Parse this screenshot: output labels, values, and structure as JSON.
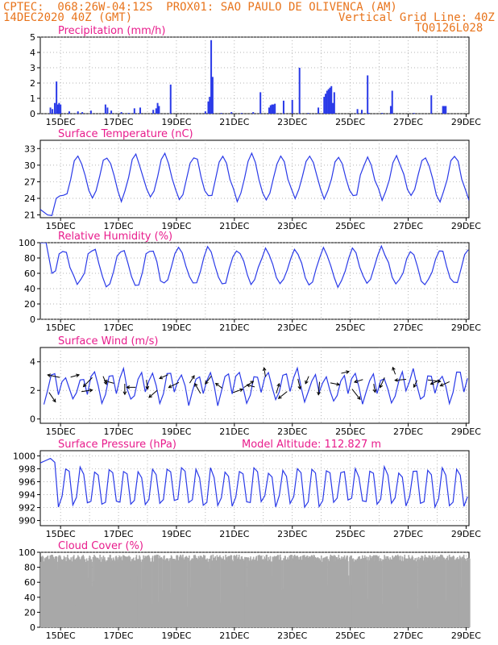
{
  "header": {
    "line1_left": "CPTEC:  068:26W-04:12S  PROX01: SAO PAULO DE OLIVENCA (AM)",
    "line2_left": "14DEC2020 40Z (GMT)",
    "line2_right": "Vertical Grid Line: 40Z",
    "line3_right": "TQ0126L028"
  },
  "colors": {
    "header": "#e8741c",
    "panel_title": "#e81c8c",
    "series": "#2a3ae8",
    "cloud": "#a8a8a8",
    "arrow": "#000000",
    "grid": "#9a9a9a"
  },
  "x_ticks": [
    "15DEC",
    "17DEC",
    "19DEC",
    "21DEC",
    "23DEC",
    "25DEC",
    "27DEC",
    "29DEC"
  ],
  "chart_data": [
    {
      "type": "bar",
      "title": "Precipitation (mm/h)",
      "ylim": [
        0,
        5
      ],
      "yticks": [
        "0",
        "1",
        "2",
        "3",
        "4",
        "5"
      ],
      "x_range_days": [
        14.3,
        29.1
      ],
      "bars": [
        [
          14.65,
          0.4
        ],
        [
          14.72,
          0.3
        ],
        [
          14.8,
          0.7
        ],
        [
          14.86,
          2.1
        ],
        [
          14.9,
          0.6
        ],
        [
          14.95,
          0.7
        ],
        [
          15.0,
          0.6
        ],
        [
          15.3,
          0.15
        ],
        [
          15.6,
          0.15
        ],
        [
          15.75,
          0.1
        ],
        [
          16.05,
          0.2
        ],
        [
          16.55,
          0.6
        ],
        [
          16.62,
          0.4
        ],
        [
          16.75,
          0.2
        ],
        [
          17.1,
          0.1
        ],
        [
          17.35,
          0.05
        ],
        [
          17.55,
          0.35
        ],
        [
          17.75,
          0.4
        ],
        [
          18.2,
          0.25
        ],
        [
          18.3,
          0.35
        ],
        [
          18.35,
          0.7
        ],
        [
          18.4,
          0.5
        ],
        [
          18.8,
          1.9
        ],
        [
          20.0,
          0.15
        ],
        [
          20.1,
          0.8
        ],
        [
          20.15,
          1.1
        ],
        [
          20.2,
          4.8
        ],
        [
          20.25,
          2.4
        ],
        [
          20.55,
          0.05
        ],
        [
          20.9,
          0.1
        ],
        [
          21.25,
          0.05
        ],
        [
          21.65,
          0.1
        ],
        [
          21.9,
          1.4
        ],
        [
          22.2,
          0.4
        ],
        [
          22.25,
          0.55
        ],
        [
          22.3,
          0.6
        ],
        [
          22.35,
          0.6
        ],
        [
          22.4,
          0.65
        ],
        [
          22.7,
          0.85
        ],
        [
          23.0,
          0.9
        ],
        [
          23.25,
          3.0
        ],
        [
          23.55,
          0.05
        ],
        [
          23.9,
          0.4
        ],
        [
          24.1,
          1.1
        ],
        [
          24.15,
          1.3
        ],
        [
          24.2,
          1.5
        ],
        [
          24.25,
          1.6
        ],
        [
          24.3,
          1.7
        ],
        [
          24.35,
          1.8
        ],
        [
          24.4,
          0.7
        ],
        [
          24.45,
          1.4
        ],
        [
          25.25,
          0.3
        ],
        [
          25.4,
          0.25
        ],
        [
          25.6,
          2.5
        ],
        [
          25.65,
          0.05
        ],
        [
          26.1,
          0.05
        ],
        [
          26.4,
          0.5
        ],
        [
          26.45,
          1.5
        ],
        [
          27.2,
          0.05
        ],
        [
          27.8,
          1.2
        ],
        [
          28.2,
          0.5
        ],
        [
          28.25,
          0.5
        ],
        [
          28.3,
          0.5
        ]
      ]
    },
    {
      "type": "line",
      "title": "Surface Temperature (nC)",
      "ylim": [
        20.5,
        34.5
      ],
      "yticks": [
        "21",
        "24",
        "27",
        "30",
        "33"
      ],
      "mean": 27.8,
      "amplitude": 3.8,
      "first_points": [
        [
          14.3,
          22.0
        ],
        [
          14.55,
          21.0
        ],
        [
          14.7,
          20.9
        ],
        [
          14.85,
          24.0
        ]
      ]
    },
    {
      "type": "line",
      "title": "Relative Humidity (%)",
      "ylim": [
        0,
        100
      ],
      "yticks": [
        "0",
        "20",
        "40",
        "60",
        "80",
        "100"
      ],
      "mean": 68,
      "amplitude": 24,
      "first_points": [
        [
          14.3,
          100
        ],
        [
          14.5,
          100
        ],
        [
          14.7,
          60
        ]
      ]
    },
    {
      "type": "line",
      "title": "Surface Wind (m/s)",
      "ylim": [
        -0.3,
        5.0
      ],
      "yticks": [
        "0",
        "2",
        "4"
      ],
      "mean": 2.2,
      "amplitude": 1.3,
      "arrows_count": 38
    },
    {
      "type": "line",
      "title": "Surface Pressure (hPa)",
      "annotation": "Model Altitude: 112.827 m",
      "ylim": [
        989.2,
        1000.8
      ],
      "yticks": [
        "990",
        "992",
        "994",
        "996",
        "998",
        "1000"
      ],
      "mean": 995.2,
      "amplitude": 3.2,
      "first_points": [
        [
          14.3,
          998.9
        ],
        [
          14.5,
          999.3
        ],
        [
          14.65,
          999.6
        ],
        [
          14.8,
          999.0
        ]
      ]
    },
    {
      "type": "area",
      "title": "Cloud Cover (%)",
      "ylim": [
        0,
        100
      ],
      "yticks": [
        "0",
        "20",
        "40",
        "60",
        "80",
        "100"
      ],
      "base": 92
    }
  ]
}
